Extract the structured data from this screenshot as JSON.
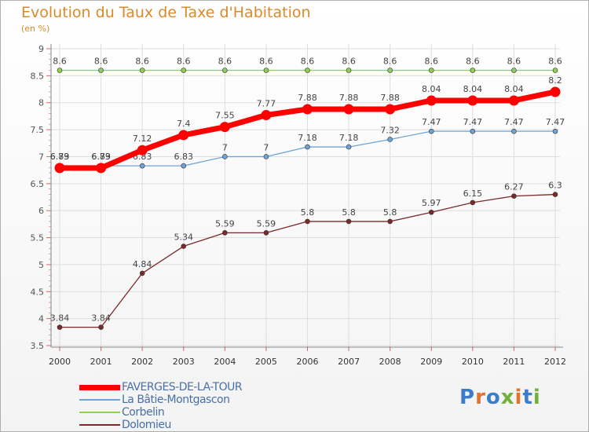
{
  "title": "Evolution du Taux de Taxe d'Habitation",
  "subtitle": "(en %)",
  "logo": {
    "letters": [
      "P",
      "r",
      "o",
      "x",
      "i",
      "t",
      "i"
    ],
    "colors": [
      "#3d7cc9",
      "#e0732e",
      "#3d7cc9",
      "#6fb13b",
      "#e0732e",
      "#3d7cc9",
      "#6fb13b"
    ]
  },
  "chart_data": {
    "type": "line",
    "categories": [
      "2000",
      "2001",
      "2002",
      "2003",
      "2004",
      "2005",
      "2006",
      "2007",
      "2008",
      "2009",
      "2010",
      "2011",
      "2012"
    ],
    "ylim": [
      3.5,
      9
    ],
    "yticks": [
      "3.5",
      "4",
      "4.5",
      "5",
      "5.5",
      "6",
      "6.5",
      "7",
      "7.5",
      "8",
      "8.5",
      "9"
    ],
    "grid": true,
    "legend_position": "bottom-left",
    "series": [
      {
        "name": "Corbelin",
        "color": "#8fd14f",
        "values": [
          8.6,
          8.6,
          8.6,
          8.6,
          8.6,
          8.6,
          8.6,
          8.6,
          8.6,
          8.6,
          8.6,
          8.6,
          8.6
        ],
        "labels": [
          "8.6",
          "8.6",
          "8.6",
          "8.6",
          "8.6",
          "8.6",
          "8.6",
          "8.6",
          "8.6",
          "8.6",
          "8.6",
          "8.6",
          "8.6"
        ]
      },
      {
        "name": "La Bâtie-Montgascon",
        "color": "#6fa3d6",
        "values": [
          6.83,
          6.83,
          6.83,
          6.83,
          7,
          7,
          7.18,
          7.18,
          7.32,
          7.47,
          7.47,
          7.47,
          7.47
        ],
        "labels": [
          "6.83",
          "6.83",
          "6.83",
          "6.83",
          "7",
          "7",
          "7.18",
          "7.18",
          "7.32",
          "7.47",
          "7.47",
          "7.47",
          "7.47"
        ]
      },
      {
        "name": "Dolomieu",
        "color": "#7a2a2a",
        "values": [
          3.84,
          3.84,
          4.84,
          5.34,
          5.59,
          5.59,
          5.8,
          5.8,
          5.8,
          5.97,
          6.15,
          6.27,
          6.3
        ],
        "labels": [
          "3.84",
          "3.84",
          "4.84",
          "5.34",
          "5.59",
          "5.59",
          "5.8",
          "5.8",
          "5.8",
          "5.97",
          "6.15",
          "6.27",
          "6.3"
        ]
      },
      {
        "name": "FAVERGES-DE-LA-TOUR",
        "color": "#ff0000",
        "values": [
          6.79,
          6.79,
          7.12,
          7.4,
          7.55,
          7.77,
          7.88,
          7.88,
          7.88,
          8.04,
          8.04,
          8.04,
          8.2
        ],
        "labels": [
          "6.79",
          "6.79",
          "7.12",
          "7.4",
          "7.55",
          "7.77",
          "7.88",
          "7.88",
          "7.88",
          "8.04",
          "8.04",
          "8.04",
          "8.2"
        ]
      }
    ],
    "legend": [
      "FAVERGES-DE-LA-TOUR",
      "La Bâtie-Montgascon",
      "Corbelin",
      "Dolomieu"
    ]
  }
}
